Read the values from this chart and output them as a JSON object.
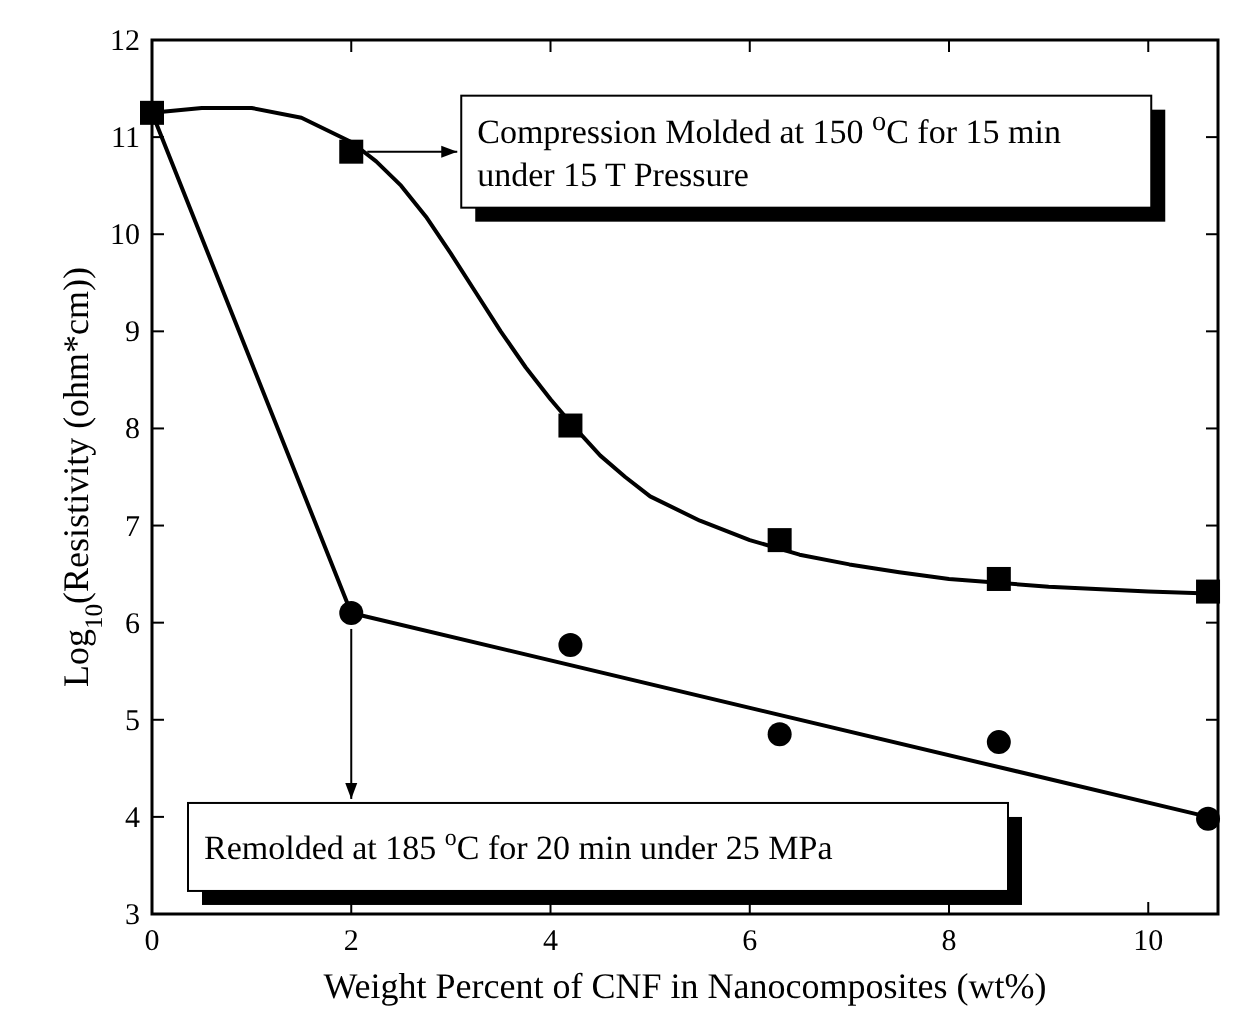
{
  "chart_data": {
    "type": "scatter",
    "xlabel": "Weight Percent of CNF in Nanocomposites (wt%)",
    "ylabel": "Log$_{10}$(Resistivity (ohm*cm))",
    "xlim": [
      0,
      10.7
    ],
    "xticks": [
      0,
      2,
      4,
      6,
      8,
      10
    ],
    "ylim": [
      3,
      12
    ],
    "yticks": [
      3,
      4,
      5,
      6,
      7,
      8,
      9,
      10,
      11,
      12
    ],
    "grid": false,
    "series": [
      {
        "type": "line",
        "color": "#000000",
        "marker": "none",
        "x": [
          0,
          0.5,
          1,
          1.5,
          2,
          2.25,
          2.5,
          2.75,
          3,
          3.25,
          3.5,
          3.75,
          4,
          4.25,
          4.5,
          4.75,
          5,
          5.5,
          6,
          6.5,
          7,
          7.5,
          8,
          9,
          10,
          10.6
        ],
        "values": [
          11.25,
          11.3,
          11.3,
          11.2,
          10.95,
          10.75,
          10.5,
          10.18,
          9.8,
          9.4,
          9.0,
          8.63,
          8.3,
          8.0,
          7.72,
          7.5,
          7.3,
          7.05,
          6.85,
          6.7,
          6.6,
          6.52,
          6.45,
          6.37,
          6.32,
          6.3
        ]
      },
      {
        "type": "line",
        "color": "#000000",
        "marker": "none",
        "x": [
          0,
          2,
          10.6
        ],
        "values": [
          11.25,
          6.1,
          4.0
        ]
      },
      {
        "color": "#000000",
        "marker": "square",
        "x": [
          0,
          2,
          4.2,
          6.3,
          8.5,
          10.6
        ],
        "values": [
          11.25,
          10.85,
          8.03,
          6.85,
          6.45,
          6.32
        ]
      },
      {
        "color": "#000000",
        "marker": "circle",
        "x": [
          2,
          4.2,
          6.3,
          8.5,
          10.6
        ],
        "values": [
          6.1,
          5.77,
          4.85,
          4.77,
          3.98
        ]
      }
    ],
    "annotations": [
      "Compression Molded at 150 $^{o}$C for 15 min under 15 T Pressure",
      {
        "text": "Remolded at 185 $^{o}$C for 20 min under 25 MPa",
        "x": 2,
        "y": 6.1
      }
    ]
  }
}
